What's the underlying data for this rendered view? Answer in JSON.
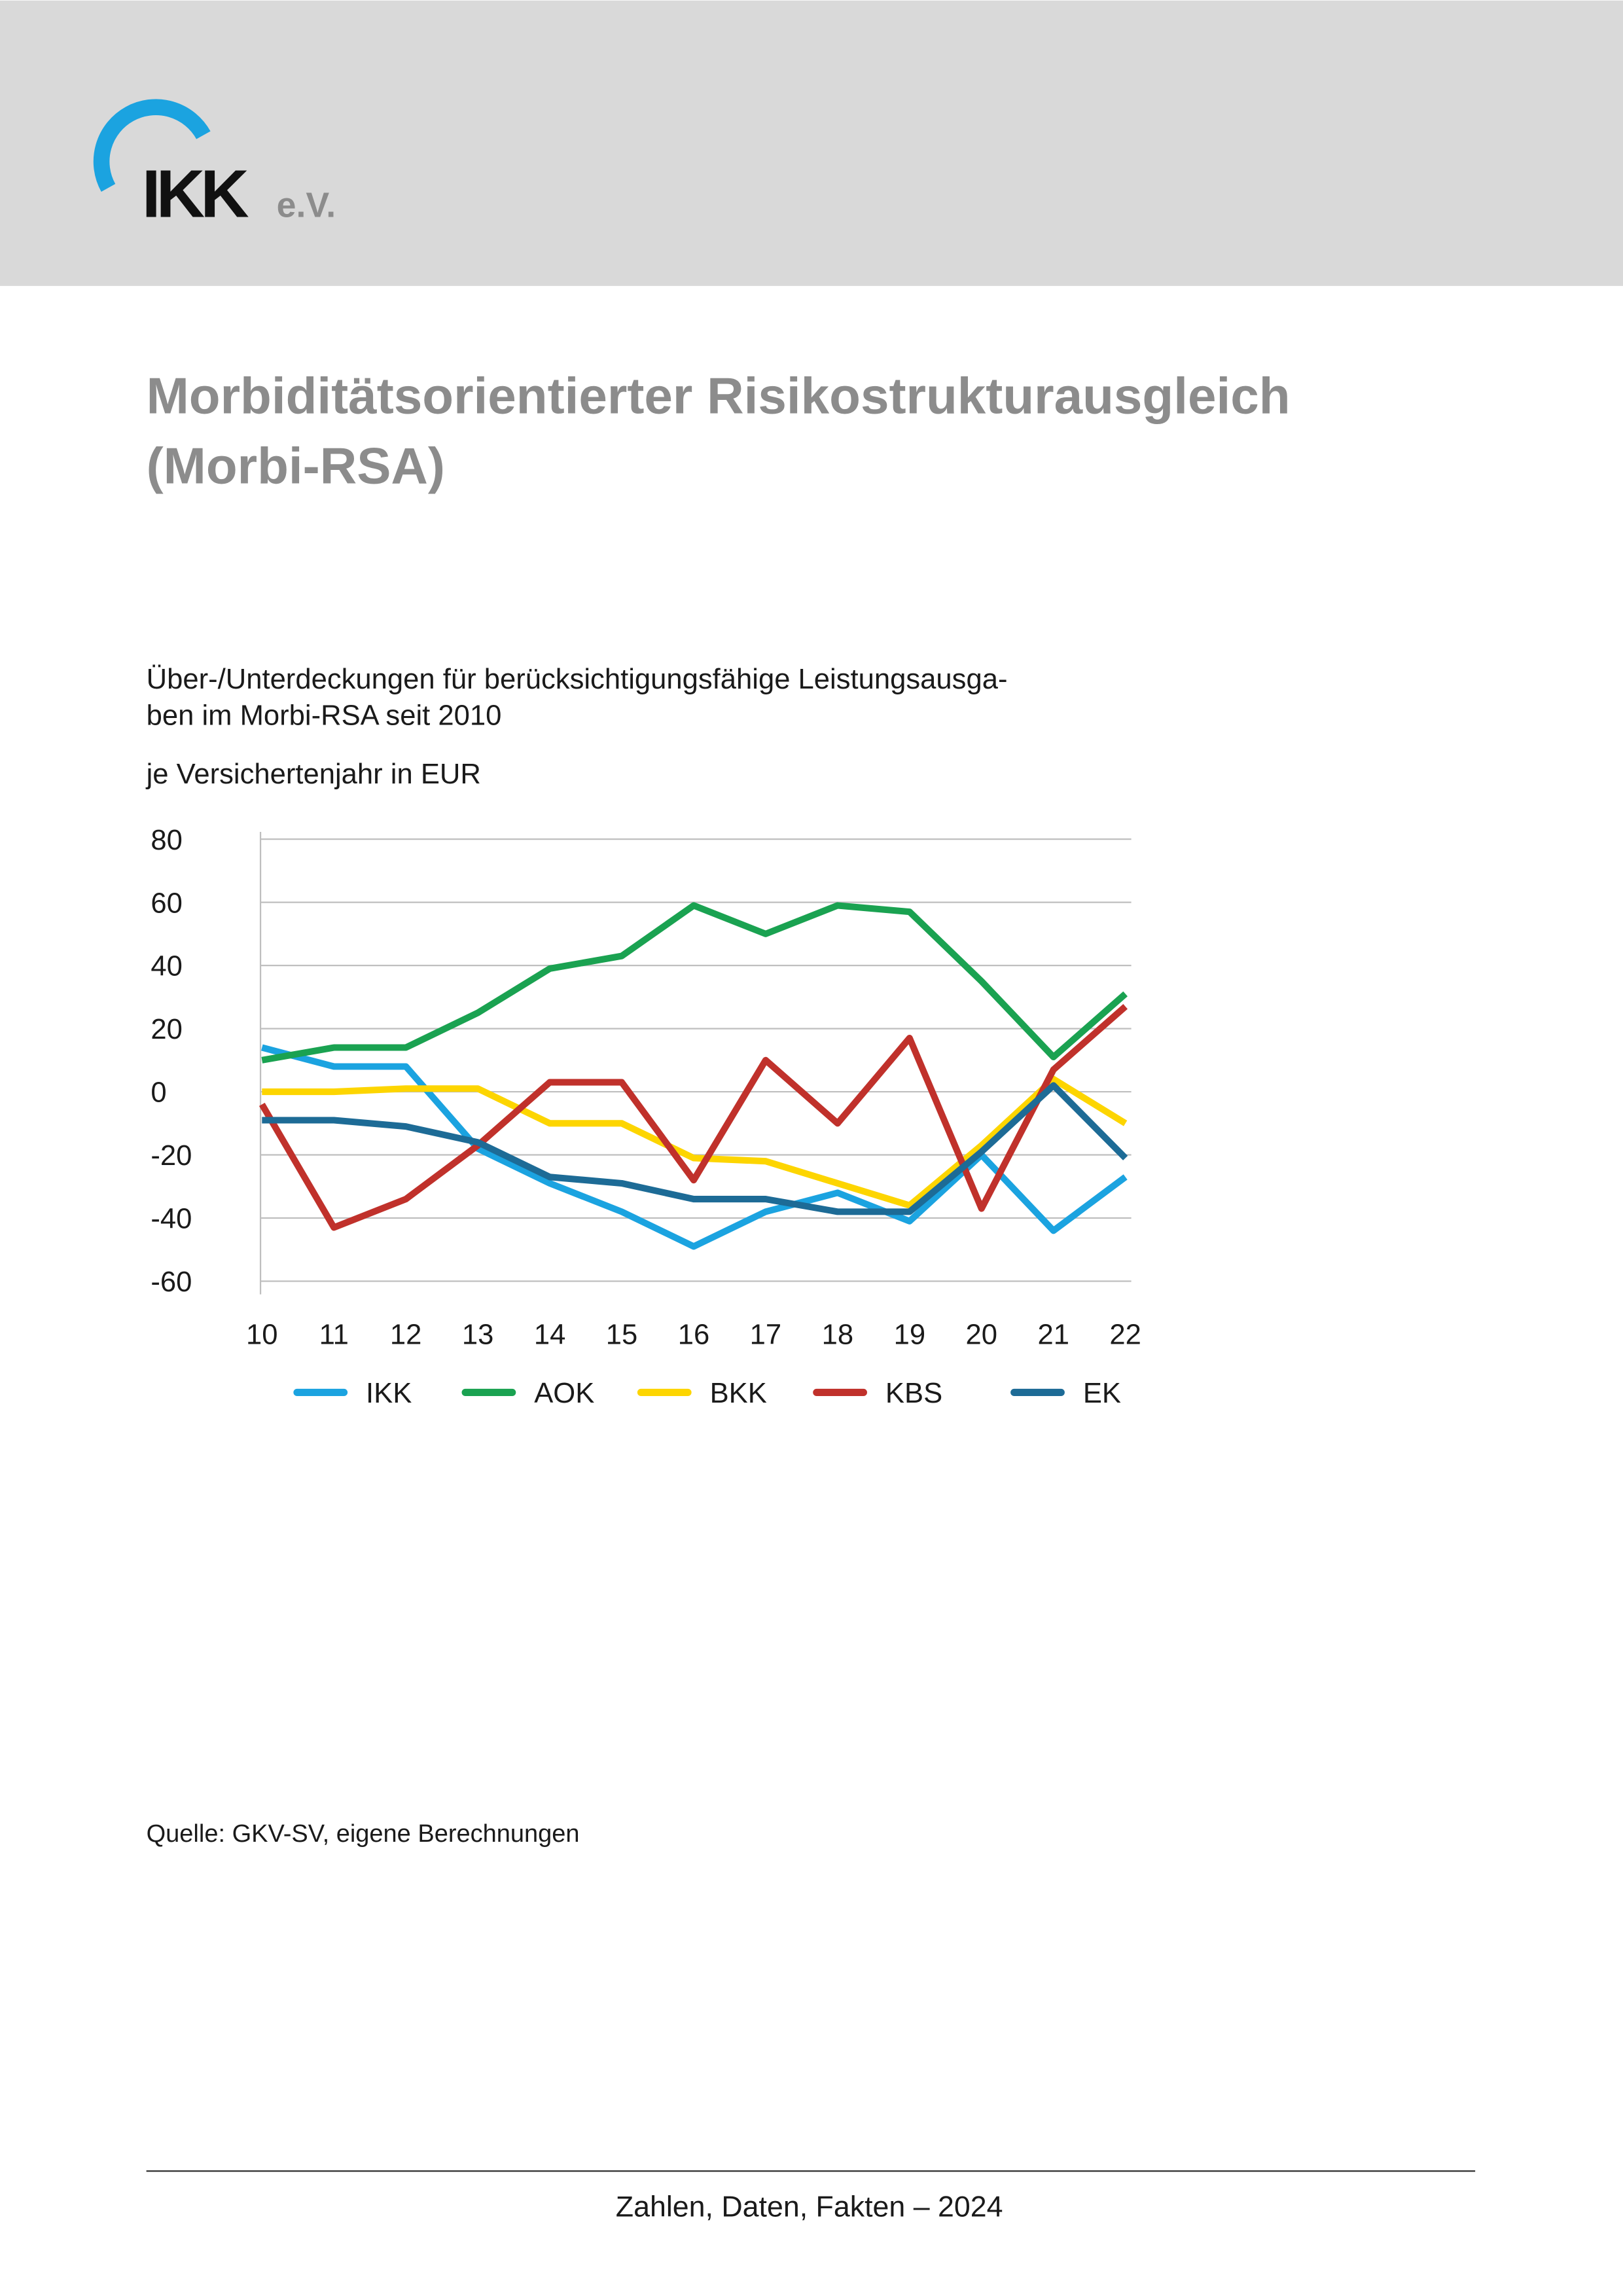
{
  "header": {
    "logo": {
      "name": "IKK",
      "suffix": "e.V."
    }
  },
  "title": [
    "Morbiditätsorientierter Risikostrukturausgleich",
    "(Morbi-RSA)"
  ],
  "chart_data": {
    "type": "line",
    "subtitle": [
      "Über-/Unterdeckungen für berücksichtigungsfähige Leistungsausga-",
      "ben im Morbi-RSA seit 2010"
    ],
    "y_label": "je Versichertenjahr in EUR",
    "categories": [
      "10",
      "11",
      "12",
      "13",
      "14",
      "15",
      "16",
      "17",
      "18",
      "19",
      "20",
      "21",
      "22"
    ],
    "ylim": [
      -60,
      80
    ],
    "yticks": [
      -60,
      -40,
      -20,
      0,
      20,
      40,
      60,
      80
    ],
    "grid": true,
    "legend": "bottom",
    "series": [
      {
        "name": "IKK",
        "color": "#1ba3e0",
        "values": [
          14,
          8,
          8,
          -18,
          -29,
          -38,
          -49,
          -38,
          -32,
          -41,
          -20,
          -44,
          -27
        ]
      },
      {
        "name": "AOK",
        "color": "#1aa251",
        "values": [
          10,
          14,
          14,
          25,
          39,
          43,
          59,
          50,
          59,
          57,
          35,
          11,
          31
        ]
      },
      {
        "name": "BKK",
        "color": "#fdd500",
        "values": [
          0,
          0,
          1,
          1,
          -10,
          -10,
          -21,
          -22,
          -29,
          -36,
          -17,
          4,
          -10
        ]
      },
      {
        "name": "KBS",
        "color": "#c0312b",
        "values": [
          -4,
          -43,
          -34,
          -17,
          3,
          3,
          -28,
          10,
          -10,
          17,
          -37,
          7,
          27
        ]
      },
      {
        "name": "EK",
        "color": "#1d6b96",
        "values": [
          -9,
          -9,
          -11,
          -16,
          -27,
          -29,
          -34,
          -34,
          -38,
          -38,
          -19,
          2,
          -21
        ]
      }
    ]
  },
  "source": "Quelle: GKV-SV, eigene Berechnungen",
  "footer": "Zahlen, Daten, Fakten – 2024"
}
